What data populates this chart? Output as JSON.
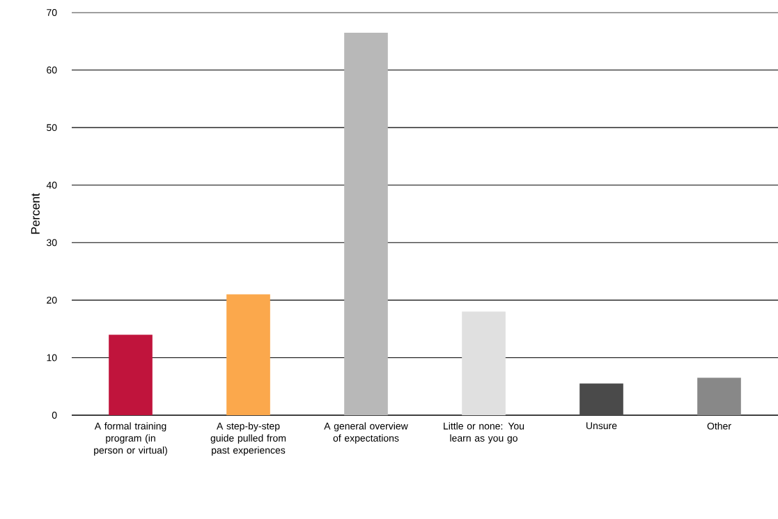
{
  "chart_data": {
    "type": "bar",
    "ylabel": "Percent",
    "categories": [
      "A formal training program (in person or virtual)",
      "A step-by-step guide pulled from past experiences",
      "A general overview of expectations",
      "Little or none: You learn as you go",
      "Unsure",
      "Other"
    ],
    "values": [
      14,
      21,
      66.5,
      18,
      5.5,
      6.5
    ],
    "colors": [
      "#c0143c",
      "#fba84c",
      "#b8b8b8",
      "#e0e0e0",
      "#4a4a4a",
      "#888888"
    ],
    "ylim": [
      0,
      70
    ],
    "yticks": [
      0,
      10,
      20,
      30,
      40,
      50,
      60,
      70
    ],
    "grid": "y"
  }
}
